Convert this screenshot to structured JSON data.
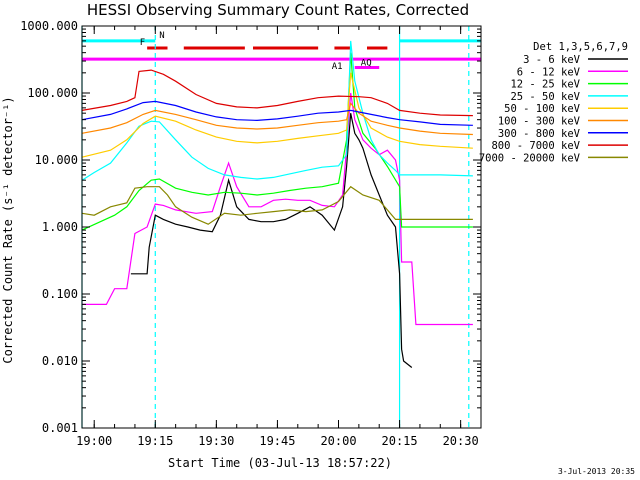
{
  "chart_data": {
    "type": "line",
    "title": "HESSI Observing Summary Count Rates, Corrected",
    "xlabel": "Start Time (03-Jul-13 18:57:22)",
    "ylabel": "Corrected Count Rate (s⁻¹ detector⁻¹)",
    "y_scale": "log",
    "ylim": [
      0.001,
      1000
    ],
    "xlim": [
      "18:57",
      "20:35"
    ],
    "x_ticks": [
      "19:00",
      "19:15",
      "19:30",
      "19:45",
      "20:00",
      "20:15",
      "20:30"
    ],
    "y_ticks": [
      "0.001",
      "0.010",
      "0.100",
      "1.000",
      "10.000",
      "100.000",
      "1000.000"
    ],
    "legend_title": "Det 1,3,5,6,7,9",
    "legend_position": "right",
    "grid": false,
    "timestamp": "3-Jul-2013 20:35",
    "series": [
      {
        "name": "3 - 6 keV",
        "color": "#000000",
        "x": [
          "19:09",
          "19:13",
          "19:13.5",
          "19:15",
          "19:17",
          "19:20",
          "19:23",
          "19:26",
          "19:29",
          "19:31",
          "19:33",
          "19:35",
          "19:38",
          "19:41",
          "19:44",
          "19:47",
          "19:50",
          "19:53",
          "19:56",
          "19:59",
          "20:01",
          "20:02",
          "20:03",
          "20:04",
          "20:05",
          "20:06",
          "20:08",
          "20:10",
          "20:12",
          "20:14",
          "20:15",
          "20:15.5",
          "20:16",
          "20:18"
        ],
        "y": [
          0.2,
          0.2,
          0.5,
          1.5,
          1.3,
          1.1,
          1.0,
          0.9,
          0.85,
          1.5,
          5,
          2,
          1.3,
          1.2,
          1.2,
          1.3,
          1.6,
          2,
          1.5,
          0.9,
          2,
          8,
          50,
          25,
          20,
          15,
          6,
          3,
          1.5,
          1.0,
          0.2,
          0.015,
          0.01,
          0.008
        ]
      },
      {
        "name": "6 - 12 keV",
        "color": "#ff00ff",
        "x": [
          "18:57",
          "19:03",
          "19:05",
          "19:08",
          "19:10",
          "19:13",
          "19:15",
          "19:17",
          "19:20",
          "19:25",
          "19:29",
          "19:31",
          "19:33",
          "19:35",
          "19:38",
          "19:41",
          "19:44",
          "19:47",
          "19:50",
          "19:53",
          "19:56",
          "19:59",
          "20:01",
          "20:02",
          "20:03",
          "20:04",
          "20:06",
          "20:08",
          "20:10",
          "20:12",
          "20:14",
          "20:15",
          "20:15.5",
          "20:18",
          "20:19",
          "20:33"
        ],
        "y": [
          0.07,
          0.07,
          0.12,
          0.12,
          0.8,
          1.0,
          2.2,
          2.1,
          1.8,
          1.6,
          1.7,
          4,
          9,
          4,
          2,
          2,
          2.5,
          2.6,
          2.5,
          2.5,
          2.1,
          2.0,
          3,
          15,
          100,
          40,
          20,
          15,
          12,
          14,
          10,
          5,
          0.3,
          0.3,
          0.035,
          0.035
        ]
      },
      {
        "name": "12 - 25 keV",
        "color": "#00ff00",
        "x": [
          "18:57",
          "19:05",
          "19:08",
          "19:11",
          "19:14",
          "19:16",
          "19:20",
          "19:24",
          "19:28",
          "19:32",
          "19:36",
          "19:40",
          "19:44",
          "19:48",
          "19:52",
          "19:56",
          "20:00",
          "20:02",
          "20:03",
          "20:04",
          "20:06",
          "20:09",
          "20:12",
          "20:15",
          "20:15.5",
          "20:33"
        ],
        "y": [
          0.9,
          1.5,
          2.0,
          3.5,
          5.0,
          5.2,
          3.8,
          3.3,
          3.0,
          3.3,
          3.2,
          3.0,
          3.2,
          3.5,
          3.8,
          4.0,
          4.5,
          20,
          400,
          60,
          25,
          15,
          8,
          4,
          1.0,
          1.0
        ]
      },
      {
        "name": "25 - 50 keV",
        "color": "#00ffff",
        "x": [
          "18:57",
          "19:00",
          "19:04",
          "19:08",
          "19:11",
          "19:14",
          "19:16",
          "19:20",
          "19:24",
          "19:28",
          "19:32",
          "19:36",
          "19:40",
          "19:44",
          "19:48",
          "19:52",
          "19:56",
          "20:00",
          "20:02",
          "20:03",
          "20:04",
          "20:06",
          "20:08",
          "20:10",
          "20:12",
          "20:14",
          "20:15",
          "20:20",
          "20:25",
          "20:33"
        ],
        "y": [
          5.0,
          6.5,
          9,
          18,
          32,
          38,
          37,
          20,
          11,
          7.5,
          6.0,
          5.5,
          5.2,
          5.5,
          6.2,
          7.0,
          7.8,
          8.2,
          12,
          600,
          150,
          50,
          20,
          12,
          9,
          7,
          6,
          6,
          6,
          5.8
        ]
      },
      {
        "name": "50 - 100 keV",
        "color": "#ffcc00",
        "x": [
          "18:57",
          "19:04",
          "19:08",
          "19:12",
          "19:15",
          "19:20",
          "19:25",
          "19:30",
          "19:35",
          "19:40",
          "19:45",
          "19:50",
          "19:55",
          "20:00",
          "20:02",
          "20:03",
          "20:05",
          "20:08",
          "20:12",
          "20:15",
          "20:20",
          "20:25",
          "20:33"
        ],
        "y": [
          11,
          14,
          20,
          35,
          45,
          38,
          28,
          22,
          19,
          18,
          19,
          21,
          23,
          25,
          28,
          200,
          60,
          30,
          22,
          19,
          17,
          16,
          15
        ]
      },
      {
        "name": "100 - 300 keV",
        "color": "#ff8800",
        "x": [
          "18:57",
          "19:04",
          "19:08",
          "19:12",
          "19:15",
          "19:20",
          "19:25",
          "19:30",
          "19:35",
          "19:40",
          "19:45",
          "19:50",
          "19:55",
          "20:00",
          "20:02",
          "20:03",
          "20:05",
          "20:08",
          "20:12",
          "20:15",
          "20:20",
          "20:25",
          "20:33"
        ],
        "y": [
          25,
          30,
          36,
          48,
          55,
          48,
          40,
          33,
          30,
          29,
          30,
          33,
          36,
          38,
          40,
          70,
          50,
          38,
          33,
          30,
          27,
          25,
          24
        ]
      },
      {
        "name": "300 - 800 keV",
        "color": "#0000ff",
        "x": [
          "18:57",
          "19:04",
          "19:08",
          "19:12",
          "19:15",
          "19:20",
          "19:25",
          "19:30",
          "19:35",
          "19:40",
          "19:45",
          "19:50",
          "19:55",
          "20:00",
          "20:03",
          "20:05",
          "20:08",
          "20:12",
          "20:15",
          "20:20",
          "20:25",
          "20:33"
        ],
        "y": [
          40,
          48,
          58,
          72,
          75,
          65,
          52,
          44,
          40,
          39,
          41,
          45,
          50,
          52,
          55,
          52,
          48,
          43,
          40,
          37,
          34,
          33
        ]
      },
      {
        "name": "800 - 7000 keV",
        "color": "#dd0000",
        "x": [
          "18:57",
          "19:04",
          "19:08",
          "19:10",
          "19:11",
          "19:14",
          "19:17",
          "19:20",
          "19:25",
          "19:30",
          "19:35",
          "19:40",
          "19:45",
          "19:50",
          "19:55",
          "20:00",
          "20:05",
          "20:08",
          "20:12",
          "20:15",
          "20:20",
          "20:25",
          "20:33"
        ],
        "y": [
          55,
          65,
          75,
          85,
          210,
          220,
          190,
          150,
          95,
          70,
          62,
          60,
          65,
          75,
          85,
          90,
          88,
          85,
          70,
          55,
          50,
          47,
          46
        ]
      },
      {
        "name": "7000 - 20000 keV",
        "color": "#888800",
        "x": [
          "18:57",
          "19:00",
          "19:04",
          "19:08",
          "19:10",
          "19:13",
          "19:16",
          "19:18",
          "19:20",
          "19:24",
          "19:28",
          "19:32",
          "19:36",
          "19:40",
          "19:44",
          "19:48",
          "19:52",
          "19:56",
          "20:00",
          "20:03",
          "20:06",
          "20:10",
          "20:14",
          "20:33"
        ],
        "y": [
          1.6,
          1.5,
          2.0,
          2.3,
          3.8,
          4.0,
          4.0,
          3.0,
          2.0,
          1.4,
          1.1,
          1.6,
          1.5,
          1.6,
          1.7,
          1.8,
          1.7,
          1.8,
          2.4,
          4,
          3,
          2.5,
          1.3,
          1.3
        ]
      }
    ],
    "vertical_lines": [
      {
        "x": "18:57",
        "style": "solid",
        "color": "#00ffff"
      },
      {
        "x": "19:15",
        "style": "dashed",
        "color": "#00ffff"
      },
      {
        "x": "20:15",
        "style": "solid",
        "color": "#00ffff"
      },
      {
        "x": "20:32",
        "style": "dashed",
        "color": "#00ffff"
      }
    ],
    "flags": [
      {
        "label": "N",
        "color": "#00ffff",
        "level": 600,
        "segments": [
          [
            "18:57",
            "19:15"
          ],
          [
            "20:15",
            "20:35"
          ]
        ]
      },
      {
        "label": "F",
        "color": "#dd0000",
        "level": 470,
        "segments": [
          [
            "19:13",
            "19:18"
          ],
          [
            "19:22",
            "19:37"
          ],
          [
            "19:39",
            "19:55"
          ],
          [
            "19:59",
            "20:03"
          ],
          [
            "20:07",
            "20:12"
          ]
        ]
      },
      {
        "label": "A1",
        "color": "#ff00ff",
        "level": 320,
        "segments": [
          [
            "18:57",
            "20:35"
          ]
        ]
      },
      {
        "label": "AQ",
        "color": "#ff00ff",
        "level": 240,
        "segments": [
          [
            "20:04",
            "20:10"
          ]
        ]
      }
    ]
  }
}
